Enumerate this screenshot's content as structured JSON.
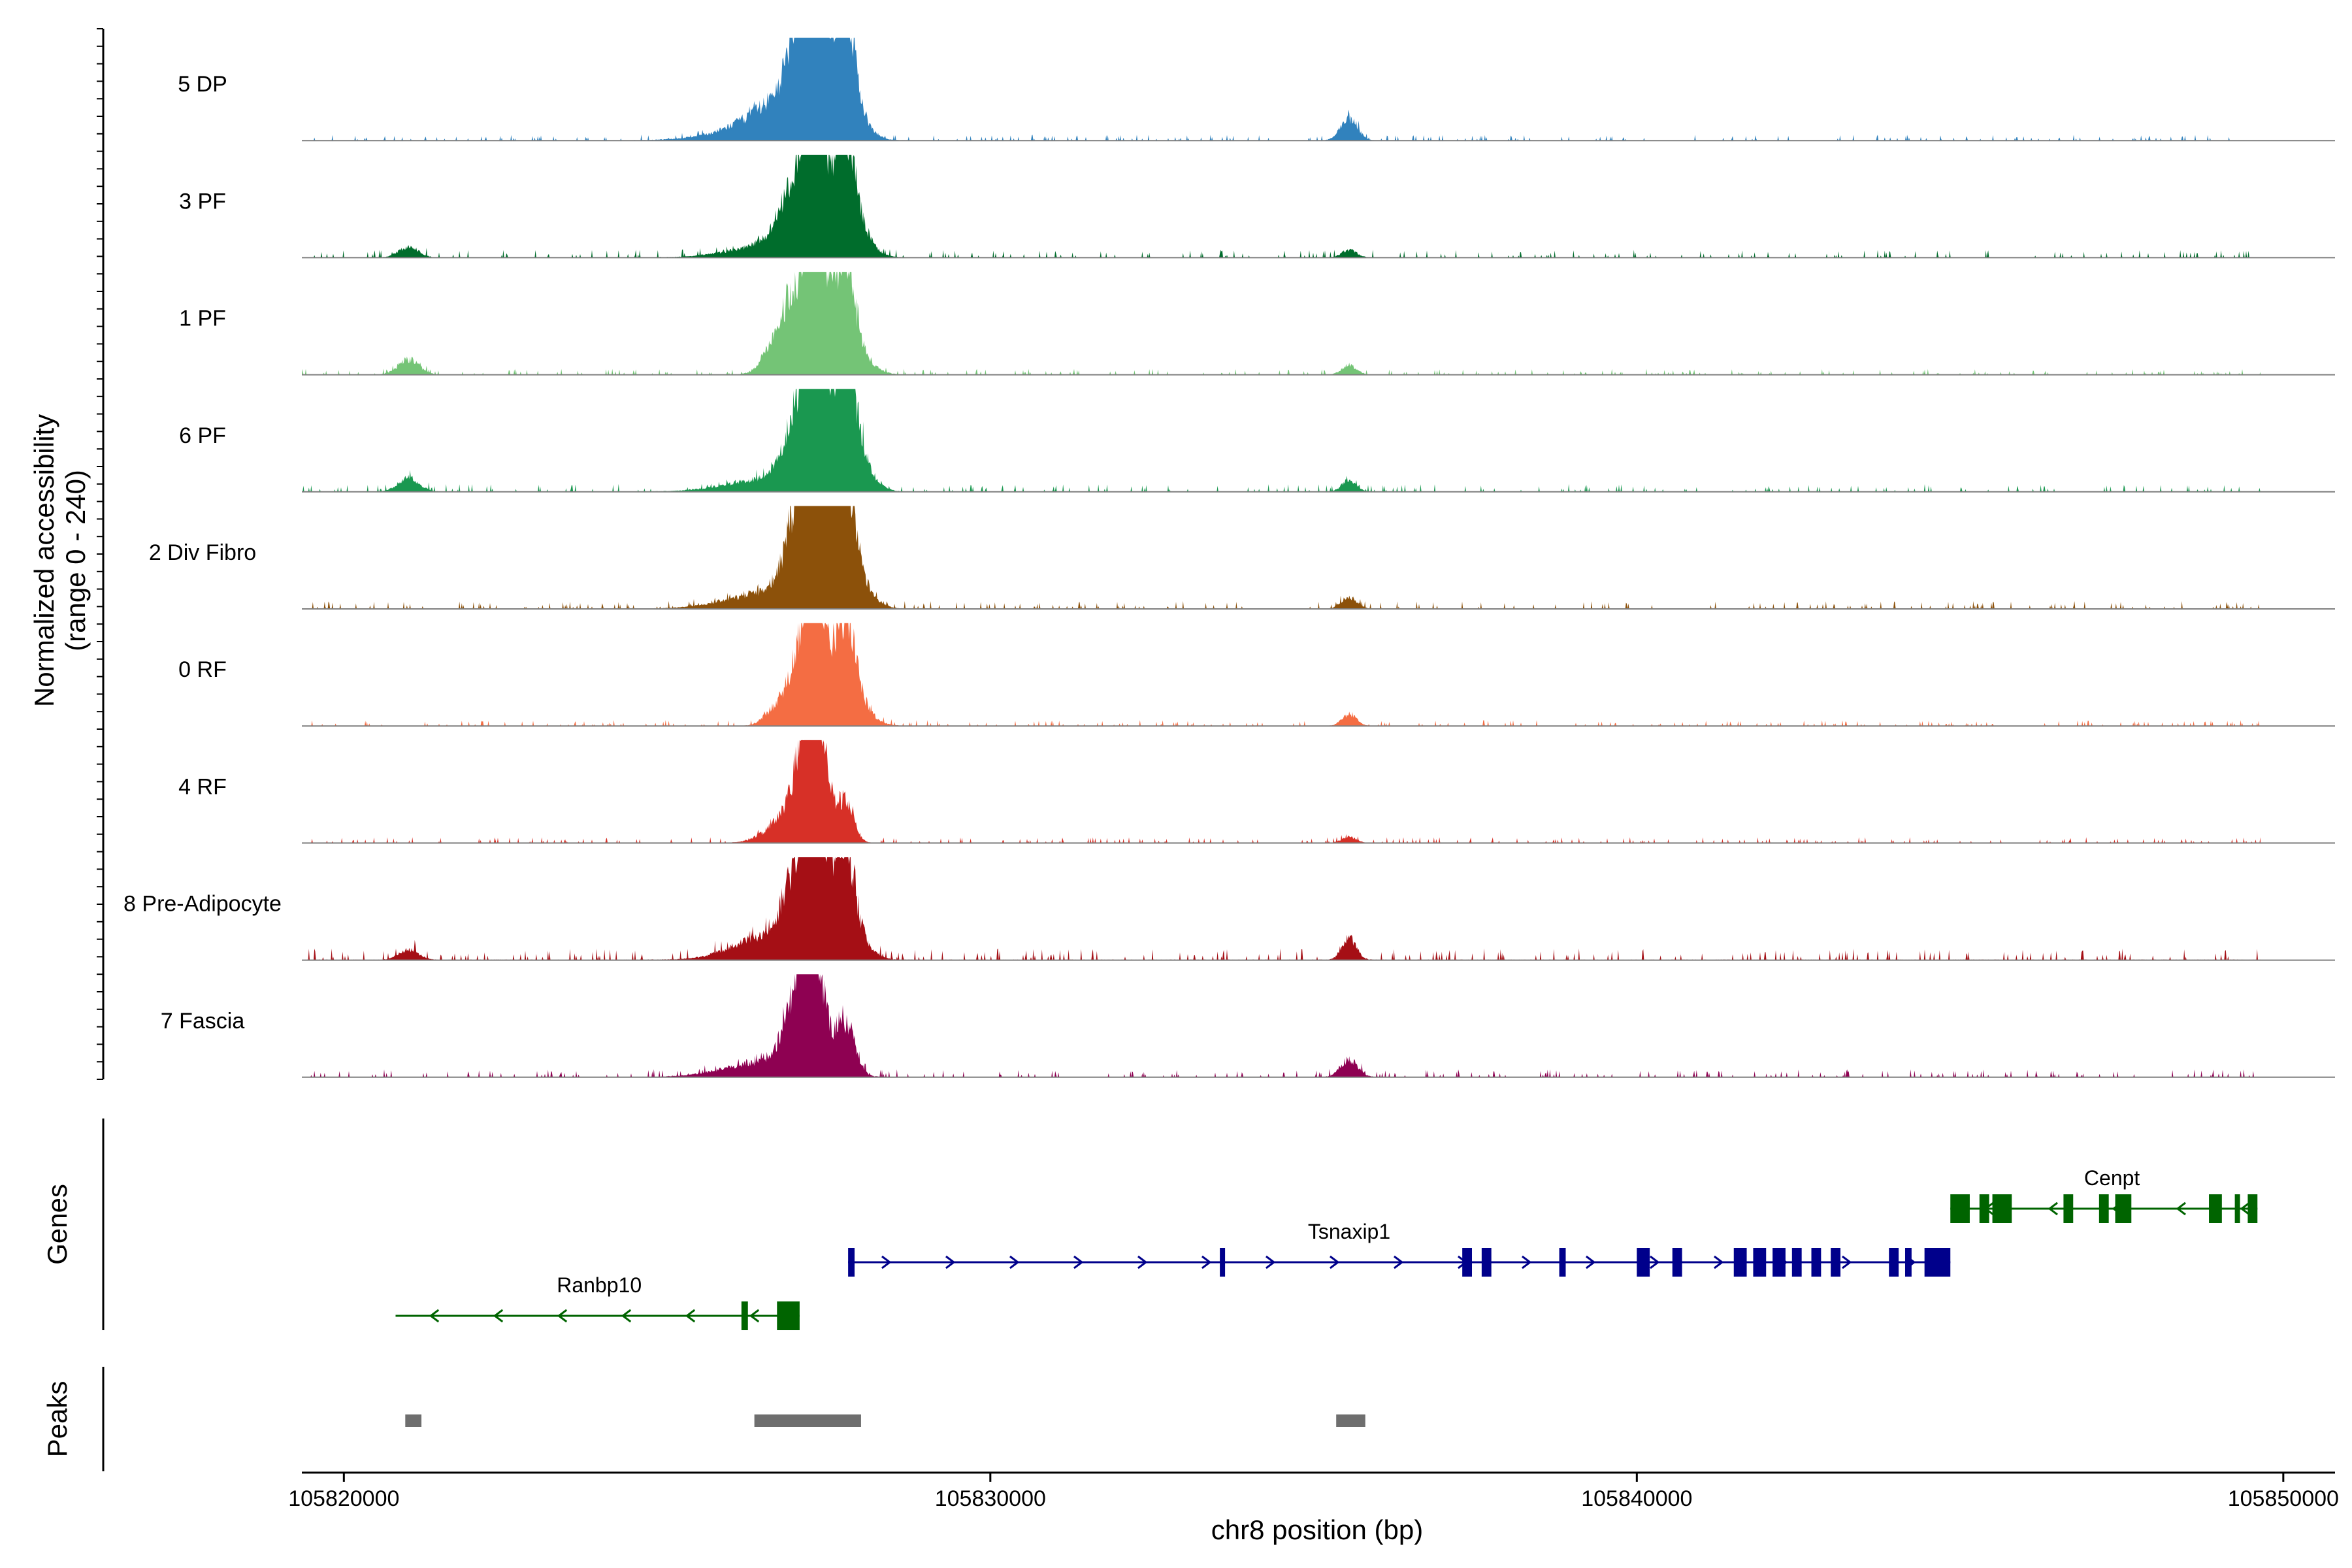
{
  "chart_data": {
    "type": "area",
    "title": "",
    "ylabel_lines": [
      "Normalized accessibility",
      "(range 0 - 240)"
    ],
    "yrange": [
      0,
      240
    ],
    "xlabel": "chr8 position (bp)",
    "xlim": [
      105819350,
      105850800
    ],
    "xticks": [
      105820000,
      105830000,
      105840000,
      105850000
    ],
    "tick_labels": [
      "105820000",
      "105830000",
      "105840000",
      "105850000"
    ],
    "region_start": 105819350,
    "region_end": 105849650,
    "series": [
      {
        "name": "5 DP",
        "color": "#3182BD",
        "peaks": [
          [
            105826500,
            700,
            0.12
          ],
          [
            105826900,
            500,
            0.32
          ],
          [
            105827150,
            200,
            0.95
          ],
          [
            105827300,
            120,
            1.0
          ],
          [
            105827350,
            300,
            0.55
          ],
          [
            105827750,
            120,
            0.78
          ],
          [
            105827800,
            220,
            0.4
          ],
          [
            105835550,
            130,
            0.22
          ]
        ],
        "noise": 0.015
      },
      {
        "name": "3 PF",
        "color": "#006D2C",
        "peaks": [
          [
            105821000,
            150,
            0.11
          ],
          [
            105826600,
            600,
            0.12
          ],
          [
            105827150,
            300,
            0.95
          ],
          [
            105827250,
            120,
            1.0
          ],
          [
            105827750,
            140,
            0.8
          ],
          [
            105827800,
            250,
            0.45
          ],
          [
            105835550,
            110,
            0.08
          ]
        ],
        "noise": 0.02
      },
      {
        "name": "1 PF",
        "color": "#74C476",
        "peaks": [
          [
            105821000,
            160,
            0.15
          ],
          [
            105826700,
            200,
            0.18
          ],
          [
            105827150,
            300,
            1.0
          ],
          [
            105827300,
            120,
            0.9
          ],
          [
            105827750,
            140,
            0.72
          ],
          [
            105827800,
            260,
            0.35
          ],
          [
            105835550,
            110,
            0.1
          ]
        ],
        "noise": 0.015
      },
      {
        "name": "6 PF",
        "color": "#1A9850",
        "peaks": [
          [
            105821000,
            160,
            0.14
          ],
          [
            105826500,
            600,
            0.12
          ],
          [
            105827150,
            260,
            0.95
          ],
          [
            105827300,
            140,
            1.0
          ],
          [
            105827750,
            160,
            0.9
          ],
          [
            105827800,
            260,
            0.5
          ],
          [
            105835550,
            110,
            0.12
          ]
        ],
        "noise": 0.02
      },
      {
        "name": "2 Div Fibro",
        "color": "#8C510A",
        "peaks": [
          [
            105826500,
            600,
            0.15
          ],
          [
            105827150,
            260,
            1.0
          ],
          [
            105827300,
            200,
            0.95
          ],
          [
            105827750,
            140,
            0.88
          ],
          [
            105827800,
            260,
            0.45
          ],
          [
            105835550,
            120,
            0.12
          ]
        ],
        "noise": 0.02
      },
      {
        "name": "0 RF",
        "color": "#F46D43",
        "peaks": [
          [
            105826650,
            160,
            0.12
          ],
          [
            105827150,
            240,
            0.85
          ],
          [
            105827300,
            140,
            1.0
          ],
          [
            105827750,
            140,
            0.78
          ],
          [
            105827800,
            260,
            0.35
          ],
          [
            105835550,
            110,
            0.12
          ]
        ],
        "noise": 0.015
      },
      {
        "name": "4 RF",
        "color": "#D73027",
        "peaks": [
          [
            105826700,
            260,
            0.15
          ],
          [
            105827150,
            220,
            0.82
          ],
          [
            105827300,
            150,
            0.9
          ],
          [
            105827750,
            130,
            0.42
          ],
          [
            105835550,
            110,
            0.06
          ]
        ],
        "noise": 0.015
      },
      {
        "name": "8 Pre-Adipocyte",
        "color": "#A50F15",
        "peaks": [
          [
            105821000,
            150,
            0.1
          ],
          [
            105826500,
            500,
            0.22
          ],
          [
            105827150,
            280,
            1.0
          ],
          [
            105827300,
            150,
            0.9
          ],
          [
            105827750,
            130,
            0.75
          ],
          [
            105827800,
            240,
            0.4
          ],
          [
            105835550,
            110,
            0.22
          ]
        ],
        "noise": 0.03
      },
      {
        "name": "7 Fascia",
        "color": "#8E0152",
        "peaks": [
          [
            105826500,
            600,
            0.15
          ],
          [
            105827100,
            240,
            0.85
          ],
          [
            105827250,
            140,
            0.95
          ],
          [
            105827750,
            150,
            0.55
          ],
          [
            105835550,
            130,
            0.18
          ]
        ],
        "noise": 0.02
      }
    ],
    "genes_label": "Genes",
    "peaks_label": "Peaks",
    "genes": [
      {
        "name": "Cenpt",
        "strand": "-",
        "color": "#006400",
        "start": 105844850,
        "end": 105849600,
        "row": 0,
        "label_pos": 105847350,
        "exons": [
          [
            105844850,
            105845150
          ],
          [
            105845300,
            105845450
          ],
          [
            105845500,
            105845800
          ],
          [
            105846600,
            105846750
          ],
          [
            105847150,
            105847300
          ],
          [
            105847400,
            105847650
          ],
          [
            105848850,
            105849050
          ],
          [
            105849250,
            105849300
          ],
          [
            105849450,
            105849600
          ]
        ]
      },
      {
        "name": "Tsnaxip1",
        "strand": "+",
        "color": "#00008B",
        "start": 105827800,
        "end": 105844850,
        "row": 1,
        "label_pos": 105835550,
        "exons": [
          [
            105827800,
            105827900
          ],
          [
            105833550,
            105833600
          ],
          [
            105837300,
            105837450
          ],
          [
            105837600,
            105837750
          ],
          [
            105838800,
            105838900
          ],
          [
            105840000,
            105840200
          ],
          [
            105840550,
            105840700
          ],
          [
            105841500,
            105841700
          ],
          [
            105841800,
            105842000
          ],
          [
            105842100,
            105842300
          ],
          [
            105842400,
            105842550
          ],
          [
            105842700,
            105842850
          ],
          [
            105843000,
            105843150
          ],
          [
            105843900,
            105844050
          ],
          [
            105844150,
            105844250
          ],
          [
            105844450,
            105844850
          ]
        ]
      },
      {
        "name": "Ranbp10",
        "strand": "-",
        "color": "#006400",
        "start": 105820800,
        "end": 105827050,
        "row": 2,
        "label_pos": 105823950,
        "exons": [
          [
            105826150,
            105826250
          ],
          [
            105826700,
            105827050
          ]
        ]
      }
    ],
    "peak_regions": [
      [
        105820950,
        105821200
      ],
      [
        105826350,
        105828000
      ],
      [
        105835350,
        105835800
      ]
    ]
  }
}
